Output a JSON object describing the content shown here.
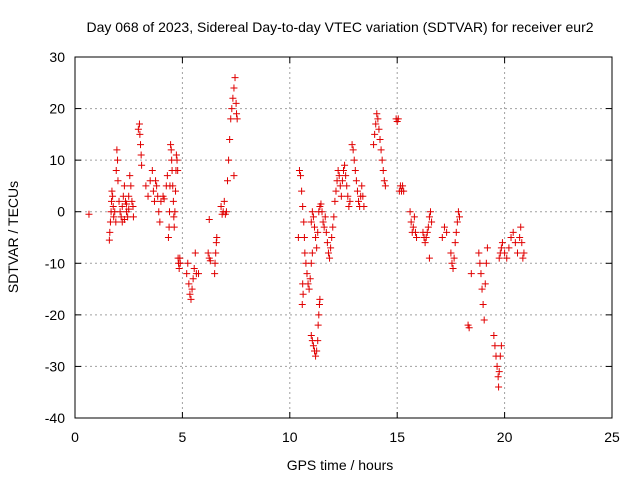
{
  "chart_data": {
    "type": "scatter",
    "title": "Day 068 of 2023, Sidereal Day-to-day VTEC variation (SDTVAR) for receiver eur2",
    "xlabel": "GPS time / hours",
    "ylabel": "SDTVAR / TECUs",
    "xlim": [
      0,
      25
    ],
    "ylim": [
      -40,
      30
    ],
    "xticks": [
      0,
      5,
      10,
      15,
      20,
      25
    ],
    "yticks": [
      -40,
      -30,
      -20,
      -10,
      0,
      10,
      20,
      30
    ],
    "grid": true,
    "marker": "+",
    "color": "#e00000",
    "series": [
      {
        "name": "SDTVAR",
        "points": [
          [
            0.65,
            -0.5
          ],
          [
            1.6,
            -5.5
          ],
          [
            1.62,
            -4
          ],
          [
            1.65,
            -2
          ],
          [
            1.68,
            0
          ],
          [
            1.7,
            2
          ],
          [
            1.72,
            4
          ],
          [
            1.75,
            3
          ],
          [
            1.78,
            1
          ],
          [
            1.8,
            -1
          ],
          [
            1.85,
            0
          ],
          [
            1.9,
            -2
          ],
          [
            1.92,
            8
          ],
          [
            1.95,
            12
          ],
          [
            1.98,
            10
          ],
          [
            2.0,
            6
          ],
          [
            2.05,
            2
          ],
          [
            2.1,
            0
          ],
          [
            2.15,
            -1
          ],
          [
            2.2,
            1
          ],
          [
            2.25,
            3
          ],
          [
            2.3,
            5
          ],
          [
            2.35,
            2
          ],
          [
            2.4,
            0
          ],
          [
            2.45,
            -1
          ],
          [
            2.5,
            3
          ],
          [
            2.55,
            7
          ],
          [
            2.6,
            5
          ],
          [
            2.65,
            2
          ],
          [
            2.7,
            1
          ],
          [
            2.72,
            -1
          ],
          [
            2.2,
            -2
          ],
          [
            2.3,
            -1.5
          ],
          [
            2.4,
            1.5
          ],
          [
            2.5,
            0.5
          ],
          [
            2.95,
            16
          ],
          [
            3.0,
            17
          ],
          [
            3.02,
            15
          ],
          [
            3.05,
            13
          ],
          [
            3.08,
            11
          ],
          [
            3.1,
            9
          ],
          [
            3.3,
            5
          ],
          [
            3.4,
            3
          ],
          [
            3.5,
            6
          ],
          [
            3.6,
            8
          ],
          [
            3.65,
            4
          ],
          [
            3.7,
            2
          ],
          [
            3.75,
            6
          ],
          [
            3.8,
            5
          ],
          [
            3.85,
            3
          ],
          [
            3.9,
            0
          ],
          [
            3.95,
            -2
          ],
          [
            4.0,
            2
          ],
          [
            4.1,
            3
          ],
          [
            4.15,
            2.5
          ],
          [
            4.25,
            5
          ],
          [
            4.3,
            7
          ],
          [
            4.35,
            -5
          ],
          [
            4.38,
            -3
          ],
          [
            4.4,
            0
          ],
          [
            4.42,
            5
          ],
          [
            4.45,
            13
          ],
          [
            4.48,
            12
          ],
          [
            4.5,
            10
          ],
          [
            4.52,
            8
          ],
          [
            4.55,
            5
          ],
          [
            4.58,
            2
          ],
          [
            4.6,
            -1
          ],
          [
            4.62,
            -3
          ],
          [
            4.65,
            0
          ],
          [
            4.68,
            4
          ],
          [
            4.7,
            8
          ],
          [
            4.72,
            11
          ],
          [
            4.75,
            10
          ],
          [
            4.78,
            8
          ],
          [
            4.8,
            -9
          ],
          [
            4.82,
            -10
          ],
          [
            4.85,
            -11
          ],
          [
            4.88,
            -9
          ],
          [
            4.9,
            -10
          ],
          [
            5.2,
            -12
          ],
          [
            5.25,
            -10
          ],
          [
            5.3,
            -14
          ],
          [
            5.35,
            -16
          ],
          [
            5.4,
            -17
          ],
          [
            5.45,
            -15
          ],
          [
            5.5,
            -13
          ],
          [
            5.55,
            -11
          ],
          [
            5.6,
            -8
          ],
          [
            5.65,
            -12
          ],
          [
            5.75,
            -12
          ],
          [
            6.2,
            -8
          ],
          [
            6.25,
            -9
          ],
          [
            6.3,
            -9.5
          ],
          [
            6.25,
            -1.5
          ],
          [
            6.5,
            -12
          ],
          [
            6.52,
            -10
          ],
          [
            6.55,
            -8
          ],
          [
            6.58,
            -6
          ],
          [
            6.6,
            -5
          ],
          [
            6.8,
            1
          ],
          [
            6.85,
            -0.5
          ],
          [
            6.9,
            0
          ],
          [
            6.95,
            2
          ],
          [
            7.0,
            -0.5
          ],
          [
            7.05,
            0
          ],
          [
            7.1,
            6
          ],
          [
            7.15,
            10
          ],
          [
            7.2,
            14
          ],
          [
            7.25,
            18
          ],
          [
            7.3,
            20
          ],
          [
            7.35,
            22
          ],
          [
            7.4,
            24
          ],
          [
            7.45,
            26
          ],
          [
            7.5,
            21
          ],
          [
            7.52,
            19
          ],
          [
            7.55,
            18
          ],
          [
            7.4,
            7
          ],
          [
            10.4,
            -5
          ],
          [
            10.45,
            8
          ],
          [
            10.5,
            7
          ],
          [
            10.55,
            4
          ],
          [
            10.6,
            1
          ],
          [
            10.65,
            -2
          ],
          [
            10.68,
            -5
          ],
          [
            10.6,
            -14
          ],
          [
            10.62,
            -16
          ],
          [
            10.58,
            -18
          ],
          [
            10.7,
            -8
          ],
          [
            10.75,
            -10
          ],
          [
            10.8,
            -12
          ],
          [
            10.85,
            -14
          ],
          [
            10.9,
            -15
          ],
          [
            10.95,
            -13
          ],
          [
            11.0,
            -10
          ],
          [
            11.05,
            -8
          ],
          [
            11.0,
            -24
          ],
          [
            11.05,
            -25
          ],
          [
            11.1,
            -26
          ],
          [
            11.15,
            -27
          ],
          [
            11.2,
            -28
          ],
          [
            11.25,
            -27
          ],
          [
            11.3,
            -25
          ],
          [
            11.32,
            -22
          ],
          [
            11.35,
            -20
          ],
          [
            11.38,
            -18
          ],
          [
            11.4,
            -17
          ],
          [
            11.0,
            -2
          ],
          [
            11.05,
            0
          ],
          [
            11.1,
            -1
          ],
          [
            11.15,
            -3
          ],
          [
            11.2,
            -5
          ],
          [
            11.25,
            -7
          ],
          [
            11.3,
            -4
          ],
          [
            11.35,
            0
          ],
          [
            11.4,
            1
          ],
          [
            11.45,
            1.5
          ],
          [
            11.5,
            0
          ],
          [
            11.55,
            -2
          ],
          [
            11.6,
            -3
          ],
          [
            11.65,
            -1
          ],
          [
            11.7,
            -4
          ],
          [
            11.75,
            -6
          ],
          [
            11.8,
            -8
          ],
          [
            11.85,
            -9
          ],
          [
            11.9,
            -7
          ],
          [
            11.95,
            -5
          ],
          [
            12.0,
            -3
          ],
          [
            12.05,
            -1
          ],
          [
            12.1,
            2
          ],
          [
            12.15,
            4
          ],
          [
            12.2,
            6
          ],
          [
            12.25,
            8
          ],
          [
            12.3,
            7
          ],
          [
            12.35,
            5
          ],
          [
            12.4,
            3
          ],
          [
            12.45,
            6
          ],
          [
            12.5,
            8
          ],
          [
            12.55,
            9
          ],
          [
            12.6,
            7
          ],
          [
            12.65,
            5
          ],
          [
            12.7,
            3
          ],
          [
            12.75,
            1
          ],
          [
            12.8,
            2
          ],
          [
            12.9,
            13
          ],
          [
            12.95,
            12
          ],
          [
            13.0,
            10
          ],
          [
            13.05,
            8
          ],
          [
            13.1,
            6
          ],
          [
            13.15,
            4
          ],
          [
            13.2,
            2
          ],
          [
            13.25,
            1
          ],
          [
            13.3,
            3
          ],
          [
            13.35,
            5
          ],
          [
            13.4,
            3
          ],
          [
            13.45,
            1
          ],
          [
            13.9,
            13
          ],
          [
            13.95,
            15
          ],
          [
            14.0,
            17
          ],
          [
            14.05,
            19
          ],
          [
            14.1,
            18
          ],
          [
            14.15,
            16
          ],
          [
            14.2,
            14
          ],
          [
            14.25,
            12
          ],
          [
            14.3,
            10
          ],
          [
            14.35,
            8
          ],
          [
            14.4,
            6
          ],
          [
            14.45,
            5
          ],
          [
            14.95,
            18
          ],
          [
            15.0,
            17.5
          ],
          [
            15.05,
            18
          ],
          [
            15.1,
            4
          ],
          [
            15.15,
            5
          ],
          [
            15.2,
            4
          ],
          [
            15.25,
            5
          ],
          [
            15.3,
            4
          ],
          [
            15.6,
            0
          ],
          [
            15.65,
            -2
          ],
          [
            15.7,
            -4
          ],
          [
            15.75,
            -3
          ],
          [
            15.8,
            -1
          ],
          [
            15.85,
            -4
          ],
          [
            15.9,
            -5
          ],
          [
            16.2,
            -4
          ],
          [
            16.25,
            -5
          ],
          [
            16.3,
            -6
          ],
          [
            16.35,
            -5
          ],
          [
            16.4,
            -4
          ],
          [
            16.45,
            -3
          ],
          [
            16.5,
            -1
          ],
          [
            16.55,
            0
          ],
          [
            16.6,
            -2
          ],
          [
            16.5,
            -9
          ],
          [
            17.1,
            -5
          ],
          [
            17.2,
            -3
          ],
          [
            17.3,
            -4
          ],
          [
            17.5,
            -8
          ],
          [
            17.55,
            -10
          ],
          [
            17.6,
            -11
          ],
          [
            17.65,
            -9
          ],
          [
            17.7,
            -6
          ],
          [
            17.75,
            -4
          ],
          [
            17.8,
            -2
          ],
          [
            17.85,
            0
          ],
          [
            17.9,
            -1
          ],
          [
            18.3,
            -22
          ],
          [
            18.35,
            -22.5
          ],
          [
            18.45,
            -12
          ],
          [
            18.8,
            -8
          ],
          [
            18.85,
            -10
          ],
          [
            18.9,
            -12
          ],
          [
            18.95,
            -15
          ],
          [
            19.0,
            -18
          ],
          [
            19.05,
            -21
          ],
          [
            19.1,
            -14
          ],
          [
            19.15,
            -10
          ],
          [
            19.2,
            -7
          ],
          [
            19.5,
            -24
          ],
          [
            19.55,
            -26
          ],
          [
            19.6,
            -28
          ],
          [
            19.65,
            -30
          ],
          [
            19.7,
            -32
          ],
          [
            19.72,
            -34
          ],
          [
            19.75,
            -31
          ],
          [
            19.8,
            -28
          ],
          [
            19.85,
            -26
          ],
          [
            19.75,
            -9
          ],
          [
            19.8,
            -8
          ],
          [
            19.85,
            -7
          ],
          [
            19.9,
            -6
          ],
          [
            20.0,
            -8
          ],
          [
            20.1,
            -9
          ],
          [
            20.2,
            -7
          ],
          [
            20.3,
            -5
          ],
          [
            20.4,
            -4
          ],
          [
            20.5,
            -6
          ],
          [
            20.6,
            -8
          ],
          [
            20.7,
            -5
          ],
          [
            20.75,
            -3
          ],
          [
            20.8,
            -6
          ],
          [
            20.85,
            -9
          ],
          [
            20.9,
            -8
          ]
        ]
      }
    ]
  }
}
